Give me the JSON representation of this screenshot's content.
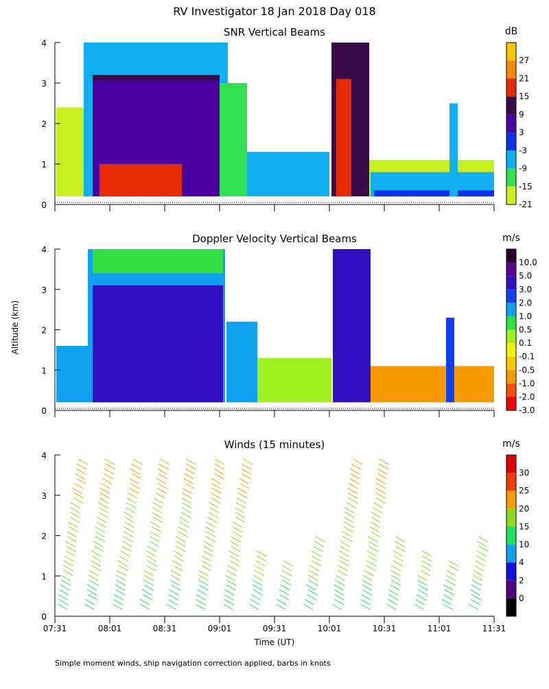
{
  "page": {
    "title": "RV Investigator  18 Jan 2018 Day 018",
    "ylabel": "Altitude (km)",
    "xlabel": "Time (UT)",
    "footnote": "Simple moment winds, ship navigation correction applied, barbs in knots"
  },
  "chart_data": [
    {
      "type": "heatmap",
      "title": "SNR Vertical Beams",
      "x_ticks": [
        "07:31",
        "08:01",
        "08:31",
        "09:01",
        "09:31",
        "10:01",
        "10:31",
        "11:01",
        "11:31"
      ],
      "y_ticks": [
        "0",
        "1",
        "2",
        "3",
        "4"
      ],
      "ylim": [
        0,
        4
      ],
      "colorbar": {
        "unit": "dB",
        "labels": [
          "27",
          "21",
          "15",
          "9",
          "3",
          "-3",
          "-9",
          "-15",
          "-21"
        ],
        "colors": [
          "#f5c400",
          "#f58a00",
          "#e82a00",
          "#3a0a4a",
          "#4b00a0",
          "#0a30f0",
          "#10b0f0",
          "#30e050",
          "#c8f020"
        ]
      }
    },
    {
      "type": "heatmap",
      "title": "Doppler Velocity Vertical Beams",
      "x_ticks": [
        "07:31",
        "08:01",
        "08:31",
        "09:01",
        "09:31",
        "10:01",
        "10:31",
        "11:01",
        "11:31"
      ],
      "y_ticks": [
        "0",
        "1",
        "2",
        "3",
        "4"
      ],
      "ylim": [
        0,
        4
      ],
      "colorbar": {
        "unit": "m/s",
        "labels": [
          "10.0",
          "5.0",
          "3.0",
          "2.0",
          "1.0",
          "0.5",
          "0.1",
          "-0.1",
          "-0.5",
          "-1.0",
          "-2.0",
          "-3.0"
        ],
        "colors": [
          "#2a0030",
          "#5a0090",
          "#3010c0",
          "#1040f0",
          "#10a0f0",
          "#30e040",
          "#a0f020",
          "#f0f000",
          "#f5c800",
          "#f59a00",
          "#f55000",
          "#f00000"
        ]
      }
    },
    {
      "type": "scatter",
      "title": "Winds (15 minutes)",
      "x_ticks": [
        "07:31",
        "08:01",
        "08:31",
        "09:01",
        "09:31",
        "10:01",
        "10:31",
        "11:01",
        "11:31"
      ],
      "y_ticks": [
        "0",
        "1",
        "2",
        "3",
        "4"
      ],
      "ylim": [
        0,
        4
      ],
      "colorbar": {
        "unit": "m/s",
        "labels": [
          "30",
          "25",
          "20",
          "15",
          "10",
          "4",
          "2",
          "0"
        ],
        "colors": [
          "#e00000",
          "#f04000",
          "#f5a000",
          "#8ed820",
          "#20e060",
          "#10a0f0",
          "#1010e0",
          "#500080",
          "#000000"
        ]
      }
    }
  ]
}
